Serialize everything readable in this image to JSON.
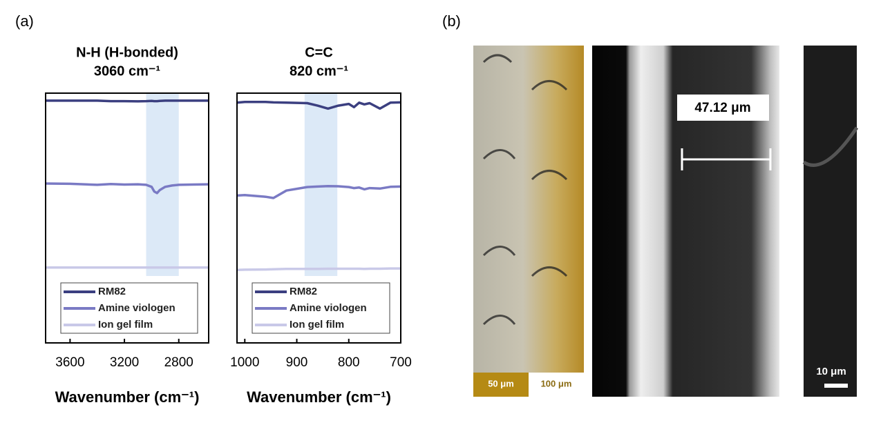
{
  "chart_data": [
    {
      "type": "line",
      "title": "N-H (H-bonded)",
      "subtitle": "3060 cm⁻¹",
      "x_label": "Wavenumber (cm⁻¹)",
      "x": [
        3780,
        3600,
        3400,
        3300,
        3200,
        3100,
        3040,
        3000,
        2980,
        2960,
        2940,
        2900,
        2850,
        2800,
        2700,
        2580
      ],
      "xlim": [
        3780,
        2580
      ],
      "xticks": [
        3600,
        3200,
        2800
      ],
      "ylim": [
        0,
        1
      ],
      "band": [
        3040,
        2800
      ],
      "band_color": "#dce9f7",
      "series": [
        {
          "name": "RM82",
          "color": "#3b3f80",
          "values": [
            0.97,
            0.97,
            0.97,
            0.968,
            0.968,
            0.967,
            0.968,
            0.969,
            0.968,
            0.968,
            0.969,
            0.97,
            0.97,
            0.97,
            0.97,
            0.97
          ]
        },
        {
          "name": "Amine viologen",
          "color": "#7a7ac4",
          "values": [
            0.638,
            0.637,
            0.633,
            0.636,
            0.634,
            0.635,
            0.633,
            0.625,
            0.606,
            0.6,
            0.612,
            0.625,
            0.63,
            0.633,
            0.634,
            0.635
          ]
        },
        {
          "name": "Ion gel film",
          "color": "#c9c9e8",
          "values": [
            0.302,
            0.302,
            0.302,
            0.302,
            0.302,
            0.302,
            0.302,
            0.302,
            0.302,
            0.302,
            0.302,
            0.302,
            0.302,
            0.302,
            0.302,
            0.302
          ]
        }
      ]
    },
    {
      "type": "line",
      "title": "C=C",
      "subtitle": "820 cm⁻¹",
      "x_label": "Wavenumber (cm⁻¹)",
      "x": [
        1015,
        1000,
        960,
        945,
        920,
        880,
        860,
        840,
        820,
        800,
        790,
        780,
        770,
        760,
        740,
        720,
        700
      ],
      "xlim": [
        1015,
        700
      ],
      "xticks": [
        1000,
        900,
        800,
        700
      ],
      "ylim": [
        0,
        1
      ],
      "band": [
        885,
        822
      ],
      "band_color": "#dce9f7",
      "series": [
        {
          "name": "RM82",
          "color": "#3b3f80",
          "values": [
            0.962,
            0.965,
            0.965,
            0.963,
            0.962,
            0.96,
            0.95,
            0.938,
            0.95,
            0.957,
            0.944,
            0.962,
            0.955,
            0.96,
            0.938,
            0.962,
            0.963
          ]
        },
        {
          "name": "Amine viologen",
          "color": "#7a7ac4",
          "values": [
            0.59,
            0.592,
            0.585,
            0.58,
            0.61,
            0.624,
            0.626,
            0.628,
            0.627,
            0.624,
            0.62,
            0.622,
            0.615,
            0.62,
            0.618,
            0.625,
            0.626
          ]
        },
        {
          "name": "Ion gel film",
          "color": "#c9c9e8",
          "values": [
            0.292,
            0.293,
            0.294,
            0.295,
            0.296,
            0.296,
            0.296,
            0.297,
            0.297,
            0.297,
            0.297,
            0.297,
            0.296,
            0.297,
            0.297,
            0.298,
            0.298
          ]
        }
      ]
    }
  ],
  "figure": {
    "panel_a": "(a)",
    "panel_b": "(b)",
    "measure": "47.12 μm",
    "scale_left": "50 μm",
    "scale_right": "100 μm",
    "scale_sem": "10 μm"
  }
}
